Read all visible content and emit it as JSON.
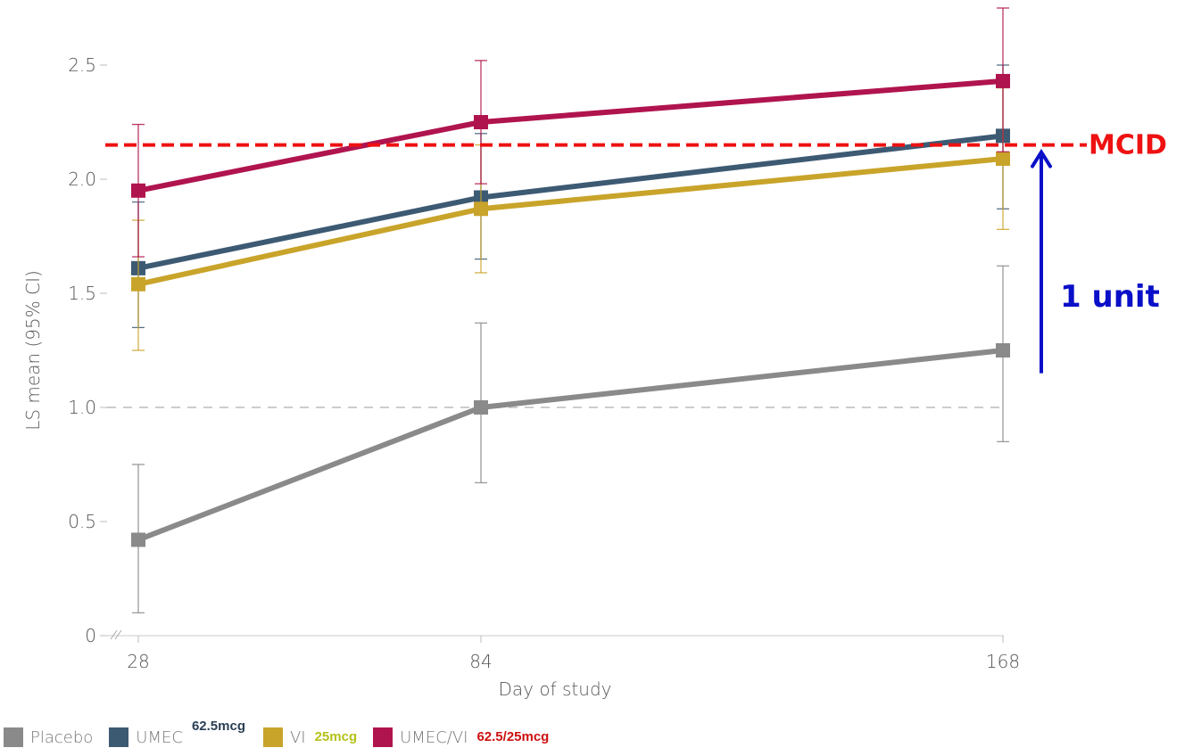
{
  "chart_data": {
    "type": "line",
    "x": [
      28,
      84,
      168
    ],
    "x_tick_labels": [
      "28",
      "84",
      "168"
    ],
    "y_ticks": [
      0,
      0.5,
      1.0,
      1.5,
      2.0,
      2.5
    ],
    "y_tick_labels": [
      "0",
      "0.5",
      "1.0",
      "1.5",
      "2.0",
      "2.5"
    ],
    "ylim": [
      0,
      2.5
    ],
    "xlabel": "Day of study",
    "ylabel": "LS mean (95% CI)",
    "series": [
      {
        "name": "Placebo",
        "color": "#8a8a8a",
        "values": [
          0.42,
          1.0,
          1.25
        ],
        "ci_low": [
          0.1,
          0.67,
          0.85
        ],
        "ci_high": [
          0.75,
          1.37,
          1.62
        ]
      },
      {
        "name": "UMEC",
        "dose": "62.5mcg",
        "color": "#3d5a73",
        "values": [
          1.61,
          1.92,
          2.19
        ],
        "ci_low": [
          1.35,
          1.65,
          1.87
        ],
        "ci_high": [
          1.9,
          2.2,
          2.5
        ]
      },
      {
        "name": "VI",
        "dose": "25mcg",
        "color": "#c9a42a",
        "values": [
          1.54,
          1.87,
          2.09
        ],
        "ci_low": [
          1.25,
          1.59,
          1.78
        ],
        "ci_high": [
          1.82,
          2.15,
          2.4
        ]
      },
      {
        "name": "UMEC/VI",
        "dose": "62.5/25mcg",
        "color": "#b0144e",
        "values": [
          1.95,
          2.25,
          2.43
        ],
        "ci_low": [
          1.66,
          1.98,
          2.12
        ],
        "ci_high": [
          2.24,
          2.52,
          2.75
        ]
      }
    ],
    "reference_lines": [
      {
        "y": 1.0,
        "style": "dashed",
        "color": "#bbbbbb"
      },
      {
        "y": 2.15,
        "label": "MCID",
        "style": "dashed",
        "color": "#ee1111"
      }
    ],
    "annotations": [
      {
        "text": "1 unit",
        "color": "#0a10c8",
        "from_y": 1.15,
        "to_y": 2.15
      }
    ],
    "legend_placement": "bottom",
    "grid": false
  }
}
